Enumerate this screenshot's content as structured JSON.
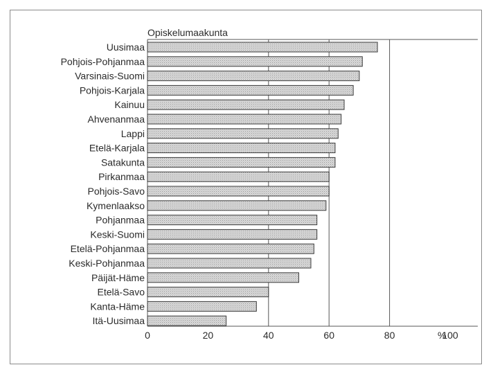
{
  "chart_data": {
    "type": "bar",
    "orientation": "horizontal",
    "title": "",
    "category_axis_title": "Opiskelumaakunta",
    "categories": [
      "Uusimaa",
      "Pohjois-Pohjanmaa",
      "Varsinais-Suomi",
      "Pohjois-Karjala",
      "Kainuu",
      "Ahvenanmaa",
      "Lappi",
      "Etelä-Karjala",
      "Satakunta",
      "Pirkanmaa",
      "Pohjois-Savo",
      "Kymenlaakso",
      "Pohjanmaa",
      "Keski-Suomi",
      "Etelä-Pohjanmaa",
      "Keski-Pohjanmaa",
      "Päijät-Häme",
      "Etelä-Savo",
      "Kanta-Häme",
      "Itä-Uusimaa"
    ],
    "values": [
      76,
      71,
      70,
      68,
      65,
      64,
      63,
      62,
      62,
      60,
      60,
      59,
      56,
      56,
      55,
      54,
      50,
      40,
      36,
      26
    ],
    "xlim": [
      0,
      100
    ],
    "xticks": [
      0,
      20,
      40,
      60,
      80,
      100
    ],
    "x_unit": "%",
    "gridlines": [
      40,
      60,
      80
    ],
    "grid": true,
    "legend": "none"
  }
}
